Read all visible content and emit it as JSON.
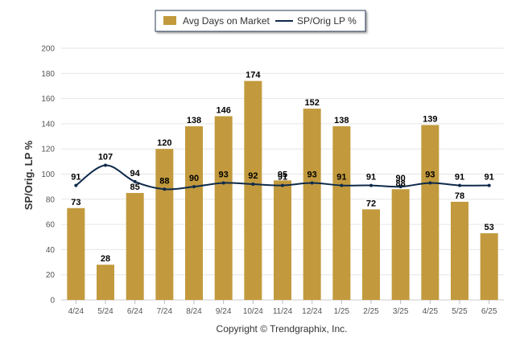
{
  "chart_data": {
    "type": "bar",
    "categories": [
      "4/24",
      "5/24",
      "6/24",
      "7/24",
      "8/24",
      "9/24",
      "10/24",
      "11/24",
      "12/24",
      "1/25",
      "2/25",
      "3/25",
      "4/25",
      "5/25",
      "6/25"
    ],
    "series": [
      {
        "name": "Avg Days on Market",
        "type": "bar",
        "values": [
          73,
          28,
          85,
          120,
          138,
          146,
          174,
          95,
          152,
          138,
          72,
          88,
          139,
          78,
          53
        ],
        "color": "#C29A3D"
      },
      {
        "name": "SP/Orig LP %",
        "type": "line",
        "values": [
          91,
          107,
          94,
          88,
          90,
          93,
          92,
          91,
          93,
          91,
          91,
          90,
          93,
          91,
          91
        ],
        "color": "#0E2A4A"
      }
    ],
    "ylabel": "SP/Orig. LP %",
    "ylim": [
      0,
      200
    ],
    "yticks": [
      0,
      20,
      40,
      60,
      80,
      100,
      120,
      140,
      160,
      180,
      200
    ],
    "grid": true,
    "legend_position": "top-center"
  },
  "footer": {
    "copyright": "Copyright © Trendgraphix, Inc."
  }
}
